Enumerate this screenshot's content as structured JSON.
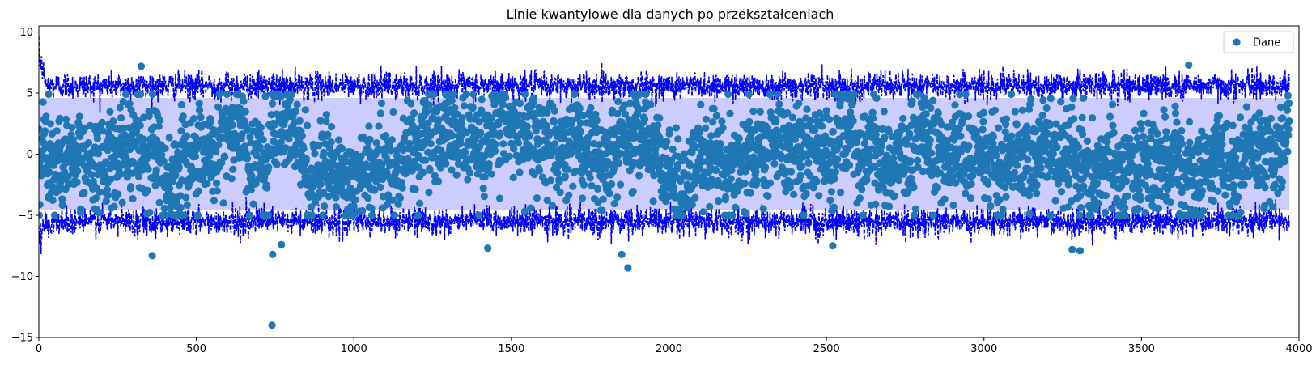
{
  "chart_data": {
    "type": "scatter",
    "title": "Linie kwantylowe dla danych po przekształceniach",
    "xlabel": "",
    "ylabel": "",
    "xlim": [
      0,
      4000
    ],
    "ylim": [
      -15,
      10.5
    ],
    "x_ticks": [
      0,
      500,
      1000,
      1500,
      2000,
      2500,
      3000,
      3500,
      4000
    ],
    "y_ticks": [
      -15,
      -10,
      -5,
      0,
      5,
      10
    ],
    "n_points": 3970,
    "legend": {
      "position": "top-right",
      "entries": [
        "Dane"
      ]
    },
    "grid": false,
    "colors": {
      "points": "#1f77b4",
      "quantile_lines": "#0000ff",
      "band_fill": "#ccccff"
    },
    "quantile_band": {
      "upper_center": 5.6,
      "lower_center": -5.5,
      "fill_upper": 4.6,
      "fill_lower": -4.6
    },
    "series": [
      {
        "name": "Dane",
        "kind": "scatter",
        "center": 0.3,
        "spread": 1.9,
        "outliers": [
          {
            "x": 325,
            "y": 7.2
          },
          {
            "x": 360,
            "y": -8.3
          },
          {
            "x": 740,
            "y": -14
          },
          {
            "x": 742,
            "y": -8.2
          },
          {
            "x": 770,
            "y": -7.4
          },
          {
            "x": 1425,
            "y": -7.7
          },
          {
            "x": 1850,
            "y": -8.2
          },
          {
            "x": 1870,
            "y": -9.3
          },
          {
            "x": 2520,
            "y": -7.5
          },
          {
            "x": 3280,
            "y": -7.8
          },
          {
            "x": 3305,
            "y": -7.9
          },
          {
            "x": 3650,
            "y": 7.3
          }
        ]
      },
      {
        "name": "",
        "kind": "quantile-upper",
        "center": 5.6
      },
      {
        "name": "",
        "kind": "quantile-lower",
        "center": -5.5
      }
    ]
  }
}
